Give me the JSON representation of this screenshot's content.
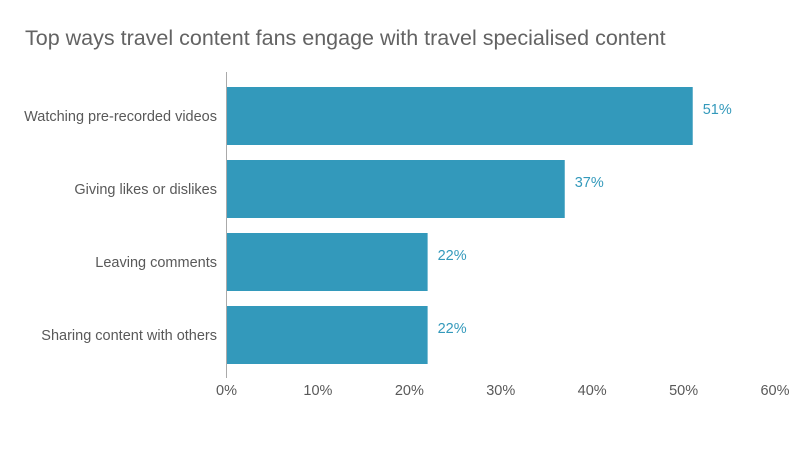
{
  "chart_data": {
    "type": "bar",
    "orientation": "horizontal",
    "title": "Top ways travel content fans engage with travel specialised content",
    "categories": [
      "Watching pre-recorded videos",
      "Giving likes or dislikes",
      "Leaving comments",
      "Sharing content with others"
    ],
    "values": [
      51,
      37,
      22,
      22
    ],
    "value_labels": [
      "51%",
      "37%",
      "22%",
      "22%"
    ],
    "xlim": [
      0,
      60
    ],
    "x_ticks": [
      0,
      10,
      20,
      30,
      40,
      50,
      60
    ],
    "x_tick_labels": [
      "0%",
      "10%",
      "20%",
      "30%",
      "40%",
      "50%",
      "60%"
    ],
    "grid": false,
    "legend": "none",
    "colors": {
      "bar": "#3399bb",
      "value_label": "#3399bb",
      "axis": "#aaaaaa"
    }
  }
}
